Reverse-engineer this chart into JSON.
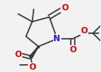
{
  "bg_color": "#f2f2f2",
  "bond_color": "#3a3a3a",
  "atom_colors": {
    "N": "#1a1aff",
    "O": "#e00000",
    "C": "#3a3a3a"
  },
  "line_width": 1.2,
  "font_size_atom": 6.0,
  "figsize": [
    1.27,
    0.91
  ],
  "dpi": 100,
  "xlim": [
    0.0,
    1.27
  ],
  "ylim": [
    0.0,
    0.91
  ]
}
